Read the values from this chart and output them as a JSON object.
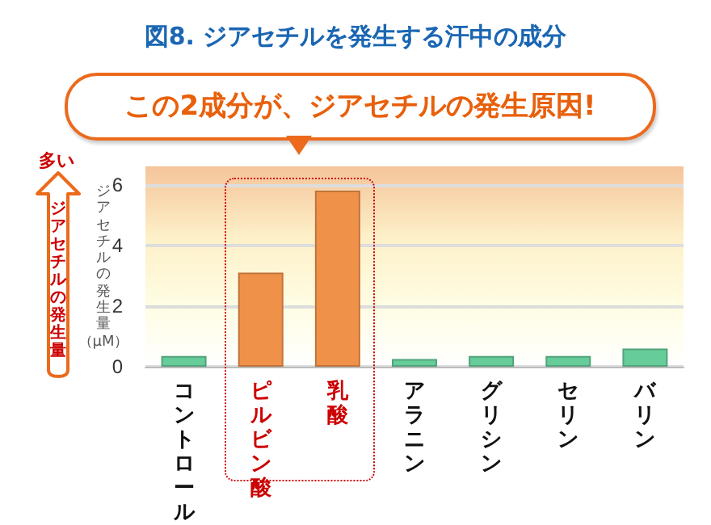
{
  "chart_data": {
    "type": "bar",
    "title": "図8. ジアセチルを発生する汗中の成分",
    "ylabel": "ジアセチルの発生量（μM）",
    "annotations": [
      "この2成分が、ジアセチルの発生原因!",
      "多い",
      "ジアセチルの発生量"
    ],
    "categories": [
      "コントロール",
      "ピルビン酸",
      "乳酸",
      "アラニン",
      "グリシン",
      "セリン",
      "バリン"
    ],
    "values": [
      0.35,
      3.1,
      5.8,
      0.25,
      0.35,
      0.35,
      0.6
    ],
    "colors": [
      "#66cc99",
      "#f0914a",
      "#f0914a",
      "#66cc99",
      "#66cc99",
      "#66cc99",
      "#66cc99"
    ],
    "ylim": [
      0,
      6.6
    ],
    "yticks": [
      0,
      2,
      4,
      6
    ],
    "grid": "y"
  }
}
